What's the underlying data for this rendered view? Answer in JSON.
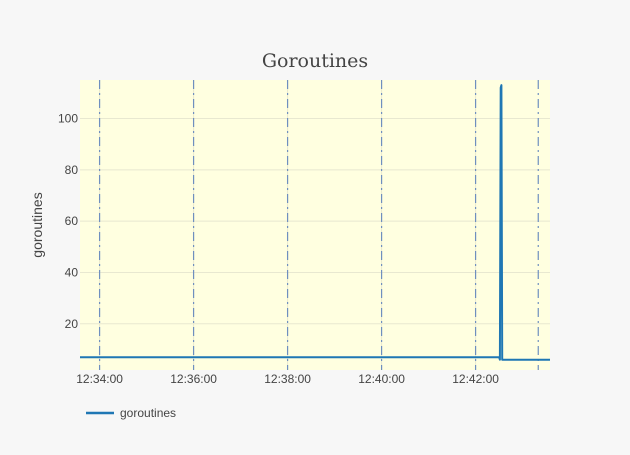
{
  "chart_data": {
    "type": "line",
    "title": "Goroutines",
    "xlabel": "",
    "ylabel": "goroutines",
    "x_ticks": [
      "12:34:00",
      "12:36:00",
      "12:38:00",
      "12:40:00",
      "12:42:00"
    ],
    "x_range": [
      "12:33:35",
      "12:43:35"
    ],
    "y_ticks": [
      20,
      40,
      60,
      80,
      100
    ],
    "ylim": [
      2,
      115
    ],
    "grid": true,
    "plot_background": "#ffffe0",
    "page_background": "#f7f7f7",
    "series": [
      {
        "name": "goroutines",
        "color": "#1f77b4",
        "points": [
          {
            "x": "12:33:35",
            "y": 7
          },
          {
            "x": "12:42:30",
            "y": 7
          },
          {
            "x": "12:42:31",
            "y": 6
          },
          {
            "x": "12:42:32",
            "y": 112
          },
          {
            "x": "12:42:33",
            "y": 113
          },
          {
            "x": "12:42:34",
            "y": 6
          },
          {
            "x": "12:43:35",
            "y": 6
          }
        ]
      }
    ],
    "event_lines": {
      "style": "dashdot",
      "color": "#6f8fbf",
      "x": [
        "12:34:00",
        "12:36:00",
        "12:38:00",
        "12:40:00",
        "12:42:00",
        "12:43:20"
      ]
    },
    "legend": {
      "placement": "bottom-left",
      "entries": [
        "goroutines"
      ]
    }
  }
}
